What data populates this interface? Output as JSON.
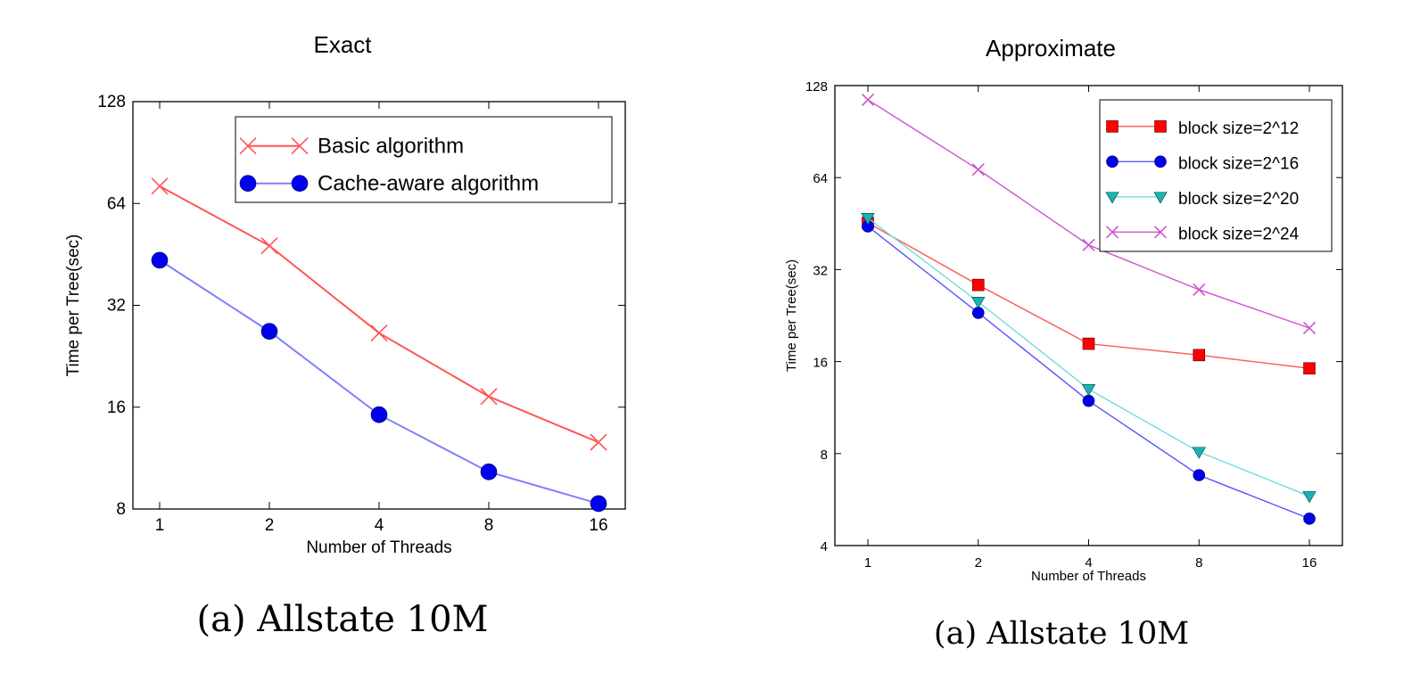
{
  "chart_data": [
    {
      "type": "line",
      "title": "Exact",
      "caption": "(a) Allstate 10M",
      "xlabel": "Number of Threads",
      "ylabel": "Time per Tree(sec)",
      "x": [
        1,
        2,
        4,
        8,
        16
      ],
      "x_scale": "log2",
      "y_scale": "log2",
      "ylim": [
        8,
        128
      ],
      "yticks": [
        8,
        16,
        32,
        64,
        128
      ],
      "legend_position": "upper-right",
      "series": [
        {
          "name": "Basic algorithm",
          "values": [
            72,
            48,
            26.5,
            17.2,
            12.6
          ],
          "color": "#ff5555",
          "marker": "x"
        },
        {
          "name": "Cache-aware algorithm",
          "values": [
            43.5,
            26.8,
            15.2,
            10.3,
            8.3
          ],
          "color": "#0000ee",
          "line_color": "#7f7fff",
          "marker": "circle"
        }
      ]
    },
    {
      "type": "line",
      "title": "Approximate",
      "caption": "(a) Allstate 10M",
      "xlabel": "Number of Threads",
      "ylabel": "Time per Tree(sec)",
      "x": [
        1,
        2,
        4,
        8,
        16
      ],
      "x_scale": "log2",
      "y_scale": "log2",
      "ylim": [
        4,
        128
      ],
      "yticks": [
        4,
        8,
        16,
        32,
        64,
        128
      ],
      "legend_position": "upper-right",
      "series": [
        {
          "name": "block size=2^12",
          "values": [
            45.5,
            28.5,
            18.3,
            16.8,
            15.2
          ],
          "color": "#ff0000",
          "line_color": "#ff5555",
          "marker": "square"
        },
        {
          "name": "block size=2^16",
          "values": [
            44.3,
            23.1,
            11.9,
            6.8,
            4.9
          ],
          "color": "#0000ee",
          "line_color": "#5555ff",
          "marker": "circle"
        },
        {
          "name": "block size=2^20",
          "values": [
            47.2,
            25.1,
            13.0,
            8.1,
            5.8
          ],
          "color": "#1ab3b3",
          "line_color": "#70dddd",
          "marker": "triangle-down"
        },
        {
          "name": "block size=2^24",
          "values": [
            115,
            68,
            38.5,
            27.5,
            20.6
          ],
          "color": "#cc55cc",
          "marker": "x"
        }
      ]
    }
  ]
}
